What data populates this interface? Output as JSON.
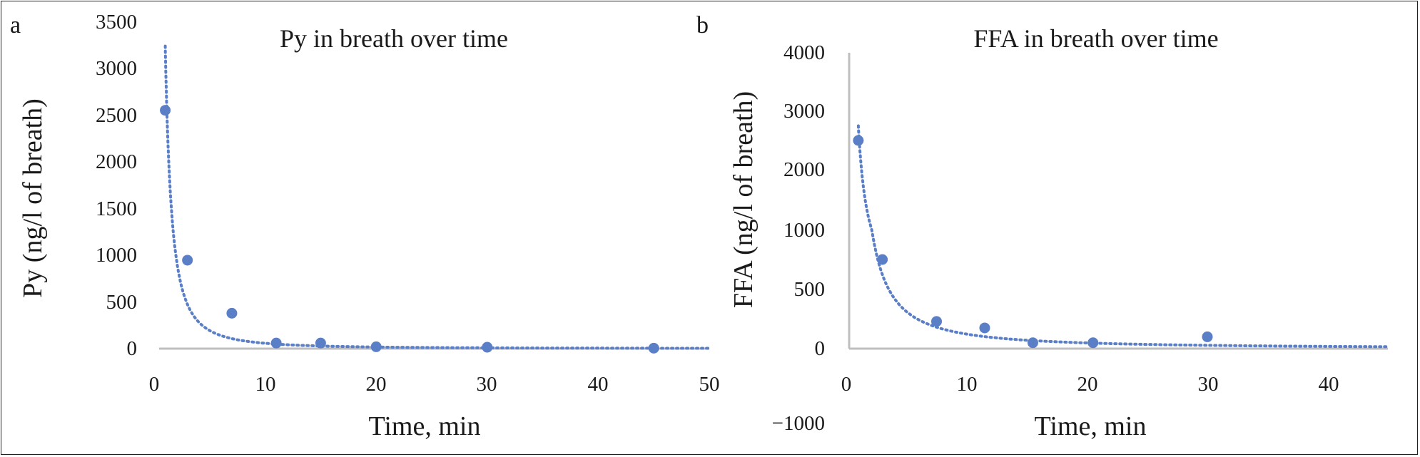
{
  "colors": {
    "series": "#5b7fc7",
    "axis": "#bfbfbf",
    "text": "#1a1a1a"
  },
  "chart_data": [
    {
      "panel": "a",
      "type": "scatter",
      "title": "Py in breath over time",
      "xlabel": "Time, min",
      "ylabel": "Py (ng/l of breath)",
      "xlim": [
        0,
        50
      ],
      "ylim": [
        0,
        3500
      ],
      "xticks": [
        "0",
        "10",
        "20",
        "30",
        "40",
        "50"
      ],
      "yticks": [
        "0",
        "500",
        "1000",
        "1500",
        "2000",
        "2500",
        "3000",
        "3500"
      ],
      "grid": false,
      "legend": "none",
      "x": [
        1,
        3,
        7,
        11,
        15,
        20,
        30,
        45
      ],
      "y": [
        2560,
        950,
        380,
        60,
        60,
        20,
        15,
        5
      ],
      "trendline": "power, dotted"
    },
    {
      "panel": "b",
      "type": "scatter",
      "title": "FFA in breath over time",
      "xlabel": "Time, min",
      "ylabel": "FFA (ng/l of breath)",
      "xlim": [
        0,
        45
      ],
      "ylim": [
        -1000,
        4000
      ],
      "xticks": [
        "0",
        "10",
        "20",
        "30",
        "40"
      ],
      "yticks": [
        "−1000",
        "0",
        "500",
        "1000",
        "2000",
        "3000",
        "4000"
      ],
      "grid": false,
      "legend": "none",
      "x": [
        1,
        3,
        7.5,
        11.5,
        15.5,
        20.5,
        30
      ],
      "y": [
        2500,
        750,
        230,
        175,
        50,
        50,
        100
      ],
      "trendline": "power, dotted"
    }
  ]
}
